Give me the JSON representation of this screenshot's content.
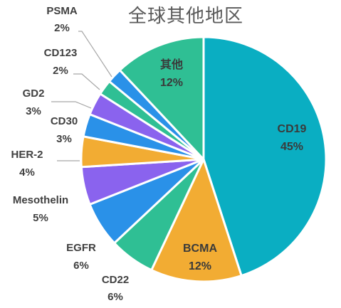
{
  "chart_data": {
    "type": "pie",
    "title": "全球其他地区",
    "start_angle_deg": 0,
    "direction": "clockwise",
    "slices": [
      {
        "name": "CD19",
        "value": 45,
        "label": "45%",
        "color": "#0AAEC2"
      },
      {
        "name": "BCMA",
        "value": 12,
        "label": "12%",
        "color": "#F2AC33"
      },
      {
        "name": "CD22",
        "value": 6,
        "label": "6%",
        "color": "#2FBF94"
      },
      {
        "name": "EGFR",
        "value": 6,
        "label": "6%",
        "color": "#2A91E8"
      },
      {
        "name": "Mesothelin",
        "value": 5,
        "label": "5%",
        "color": "#8A63EE"
      },
      {
        "name": "HER-2",
        "value": 4,
        "label": "4%",
        "color": "#F2AC33"
      },
      {
        "name": "CD30",
        "value": 3,
        "label": "3%",
        "color": "#2A91E8"
      },
      {
        "name": "GD2",
        "value": 3,
        "label": "3%",
        "color": "#8A63EE"
      },
      {
        "name": "CD123",
        "value": 2,
        "label": "2%",
        "color": "#2FBF94"
      },
      {
        "name": "PSMA",
        "value": 2,
        "label": "2%",
        "color": "#2A91E8"
      },
      {
        "name": "其他",
        "value": 12,
        "label": "12%",
        "color": "#2FBF94"
      }
    ]
  }
}
